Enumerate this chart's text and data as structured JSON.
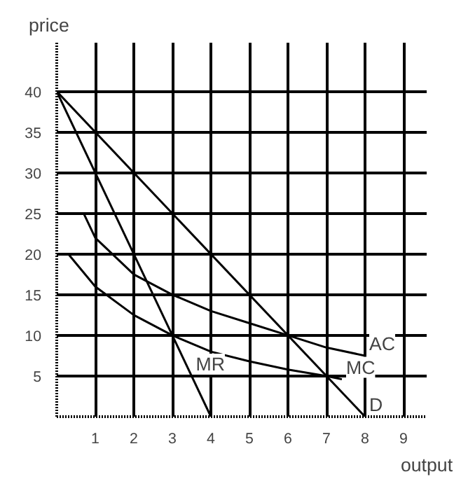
{
  "chart_data": {
    "type": "line",
    "xlabel": "output",
    "ylabel": "price",
    "xlim": [
      0,
      9.6
    ],
    "ylim": [
      0,
      46
    ],
    "xticks": [
      1,
      2,
      3,
      4,
      5,
      6,
      7,
      8,
      9
    ],
    "yticks": [
      5,
      10,
      15,
      20,
      25,
      30,
      35,
      40
    ],
    "grid": true,
    "marker": "none",
    "line_style": "solid",
    "series": [
      {
        "color": "#000000",
        "x": [
          0,
          8
        ],
        "values": [
          40,
          0
        ]
      },
      {
        "color": "#000000",
        "x": [
          0,
          4
        ],
        "values": [
          40,
          0
        ]
      },
      {
        "color": "#000000",
        "x": [
          0.7,
          1,
          2,
          3,
          4,
          5,
          6,
          7,
          8
        ],
        "values": [
          25,
          22,
          17.5,
          15,
          13,
          11.5,
          10,
          8.5,
          7.5
        ]
      },
      {
        "color": "#000000",
        "x": [
          0.3,
          1,
          2,
          3,
          4,
          5,
          6,
          7,
          7.4
        ],
        "values": [
          20,
          16,
          12.5,
          10,
          8,
          6.8,
          5.8,
          5,
          4.6
        ]
      }
    ],
    "annotations": [
      {
        "text": "AC",
        "x": 8,
        "y": 7.5
      },
      {
        "text": "MC",
        "x": 7.4,
        "y": 4.6
      },
      {
        "text": "MR",
        "x": 3.5,
        "y": 5
      },
      {
        "text": "D",
        "x": 8,
        "y": 0
      }
    ]
  }
}
